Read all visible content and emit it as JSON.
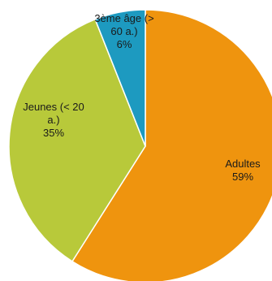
{
  "chart_data": {
    "type": "pie",
    "slices": [
      {
        "label": [
          "Adultes",
          "59%"
        ],
        "value": 59,
        "color": "#ef940e"
      },
      {
        "label": [
          "Jeunes (< 20",
          "a.)",
          "35%"
        ],
        "value": 35,
        "color": "#b8c93a"
      },
      {
        "label": [
          "3ème âge (>",
          "60 a.)",
          "6%"
        ],
        "value": 6,
        "color": "#1d9ac0"
      }
    ]
  }
}
